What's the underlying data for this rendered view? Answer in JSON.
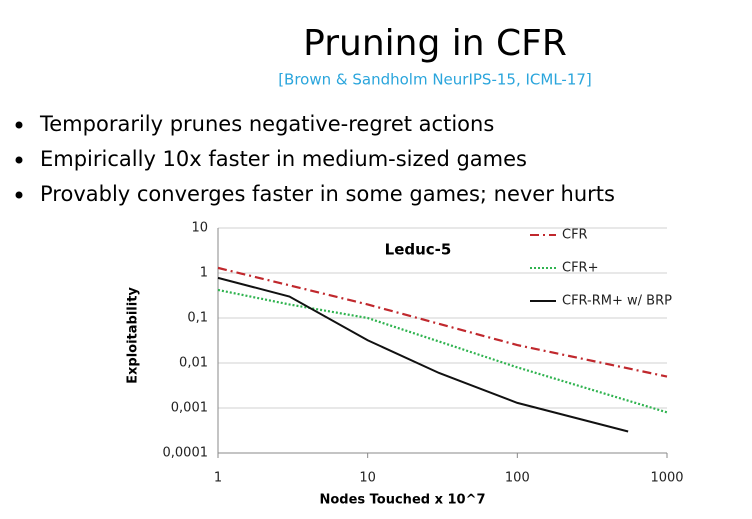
{
  "slide": {
    "title": "Pruning in CFR",
    "citation": "[Brown & Sandholm NeurIPS-15, ICML-17]",
    "bullets": [
      "Temporarily prunes negative-regret actions",
      "Empirically 10x faster in medium-sized games",
      "Provably converges faster in some games; never hurts"
    ]
  },
  "chart_data": {
    "type": "line",
    "annotation": "Leduc-5",
    "xlabel": "Nodes Touched x 10^7",
    "ylabel": "Exploitability",
    "xscale": "log",
    "yscale": "log",
    "grid": true,
    "legend": "upper right",
    "xlim": [
      1,
      1000
    ],
    "xticks": [
      1,
      10,
      100,
      1000
    ],
    "ylim": [
      0.0001,
      10
    ],
    "yticks": [
      {
        "value": 0.0001,
        "label": "0,0001"
      },
      {
        "value": 0.001,
        "label": "0,001"
      },
      {
        "value": 0.01,
        "label": "0,01"
      },
      {
        "value": 0.1,
        "label": "0,1"
      },
      1,
      10
    ],
    "series": [
      {
        "name": "CFR",
        "color": "#c0282d",
        "style": "dashdot",
        "x": [
          1,
          10,
          100,
          1000
        ],
        "values": [
          1.3,
          0.2,
          0.025,
          0.005
        ]
      },
      {
        "name": "CFR+",
        "color": "#2fb34f",
        "style": "dotted",
        "x": [
          1,
          3,
          10,
          100,
          1000
        ],
        "values": [
          0.42,
          0.2,
          0.1,
          0.008,
          0.0008
        ]
      },
      {
        "name": "CFR-RM+ w/ BRP",
        "color": "#111111",
        "style": "solid",
        "x": [
          1,
          3,
          10,
          30,
          100,
          550
        ],
        "values": [
          0.78,
          0.3,
          0.032,
          0.006,
          0.0013,
          0.0003
        ]
      }
    ]
  }
}
